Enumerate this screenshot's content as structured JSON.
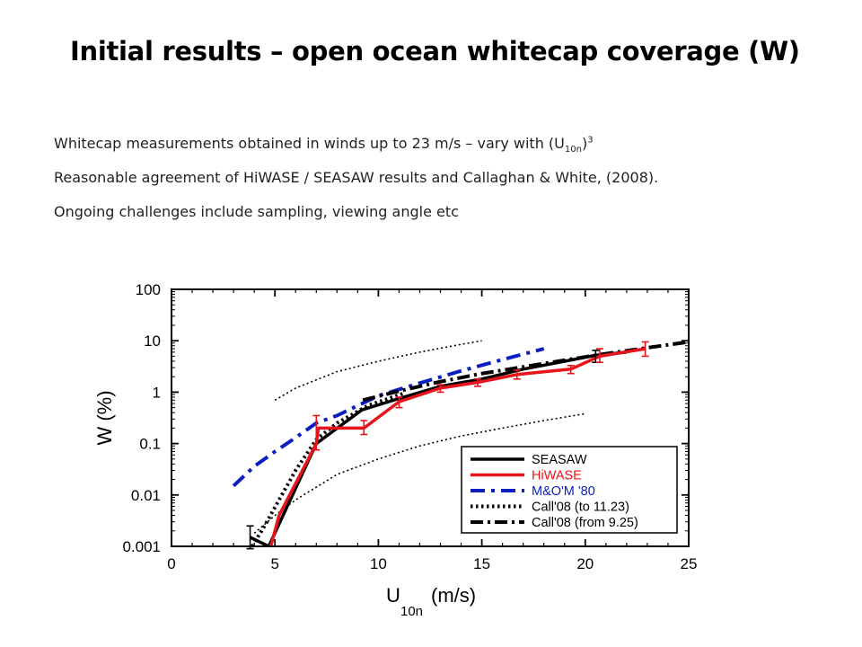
{
  "slide": {
    "title": "Initial results – open ocean whitecap coverage (W)",
    "bullets": {
      "b1": {
        "pre": "Whitecap measurements obtained in winds up to 23 m/s – vary with (U",
        "sub": "10n",
        "post": ")",
        "sup": "3"
      },
      "b2": "Reasonable agreement of HiWASE / SEASAW results and Callaghan & White, (2008).",
      "b3": "Ongoing challenges include sampling, viewing angle etc"
    }
  },
  "chart_data": {
    "type": "line",
    "ylabel": "W (%)",
    "xlabel_main": "U",
    "xlabel_sub": "10n",
    "xlabel_unit": "(m/s)",
    "xlim": [
      0,
      25
    ],
    "ylim": [
      0.001,
      100
    ],
    "yscale": "log",
    "xticks": [
      0,
      5,
      10,
      15,
      20,
      25
    ],
    "xtick_labels": [
      "0",
      "5",
      "10",
      "15",
      "20",
      "25"
    ],
    "yticks": [
      0.001,
      0.01,
      0.1,
      1,
      10,
      100
    ],
    "ytick_labels": [
      "0.001",
      "0.01",
      "0.1",
      "1",
      "10",
      "100"
    ],
    "grid": false,
    "legend_position": "bottom-right",
    "colors": {
      "black": "#000000",
      "red": "#e8141c",
      "blue": "#0a1fbf"
    },
    "series": [
      {
        "name": "SEASAW",
        "color": "#000000",
        "style": "solid",
        "x": [
          3.8,
          4.7,
          7,
          9.2,
          11,
          13,
          15,
          17,
          19,
          20.5,
          22
        ],
        "y": [
          0.0015,
          0.001,
          0.1,
          0.45,
          0.75,
          1.3,
          1.8,
          2.8,
          4,
          5.2,
          6
        ],
        "errorbars": [
          {
            "x": 3.8,
            "lo": 0.0009,
            "hi": 0.0025
          },
          {
            "x": 20.5,
            "lo": 3.8,
            "hi": 6.5
          }
        ]
      },
      {
        "name": "HiWASE",
        "color": "#e8141c",
        "style": "solid",
        "x": [
          4.8,
          5.2,
          7,
          7.1,
          9.3,
          11,
          13,
          14.8,
          16.7,
          19.3,
          20.7,
          22.9
        ],
        "y": [
          0.001,
          0.004,
          0.1,
          0.2,
          0.2,
          0.65,
          1.2,
          1.55,
          2.2,
          2.8,
          5,
          7
        ],
        "errorbars": [
          {
            "x": 7,
            "lo": 0.075,
            "hi": 0.35
          },
          {
            "x": 9.3,
            "lo": 0.15,
            "hi": 0.28
          },
          {
            "x": 11,
            "lo": 0.5,
            "hi": 0.8
          },
          {
            "x": 13,
            "lo": 1.0,
            "hi": 1.4
          },
          {
            "x": 14.8,
            "lo": 1.3,
            "hi": 1.8
          },
          {
            "x": 16.7,
            "lo": 1.8,
            "hi": 2.7
          },
          {
            "x": 19.3,
            "lo": 2.3,
            "hi": 3.3
          },
          {
            "x": 20.7,
            "lo": 3.8,
            "hi": 7
          },
          {
            "x": 22.9,
            "lo": 5,
            "hi": 9.5
          }
        ]
      },
      {
        "name": "M&O'M '80",
        "color": "#0a1fbf",
        "style": "dashdot",
        "x": [
          3,
          4,
          5,
          6,
          7,
          8,
          10,
          12,
          14,
          16,
          18
        ],
        "y": [
          0.015,
          0.036,
          0.07,
          0.13,
          0.25,
          0.35,
          0.85,
          1.5,
          2.6,
          4.3,
          7
        ]
      },
      {
        "name": "Call'08 (to 11.23)",
        "color": "#000000",
        "style": "dotted-thick",
        "x": [
          3.9,
          4.5,
          5.2,
          6,
          7,
          8,
          9.5,
          11.23
        ],
        "y": [
          0.001,
          0.0025,
          0.008,
          0.03,
          0.12,
          0.25,
          0.55,
          0.95
        ]
      },
      {
        "name": "Call'08 (from 9.25)",
        "color": "#000000",
        "style": "dashdot-thick",
        "x": [
          9.25,
          11,
          13,
          15,
          17,
          19,
          21,
          23,
          25
        ],
        "y": [
          0.7,
          1.05,
          1.6,
          2.3,
          3.1,
          4.2,
          5.6,
          7.3,
          9.5
        ]
      }
    ],
    "bounds": [
      {
        "style": "dotted-thin",
        "color": "#000000",
        "x": [
          5,
          6,
          8,
          10,
          12,
          14,
          15
        ],
        "y": [
          0.7,
          1.2,
          2.5,
          4,
          6,
          8.5,
          10
        ]
      },
      {
        "style": "dotted-thin",
        "color": "#000000",
        "x": [
          4,
          5,
          6,
          8,
          10,
          12,
          14,
          16,
          18,
          20
        ],
        "y": [
          0.0018,
          0.004,
          0.008,
          0.025,
          0.05,
          0.09,
          0.14,
          0.2,
          0.28,
          0.38
        ]
      }
    ]
  }
}
